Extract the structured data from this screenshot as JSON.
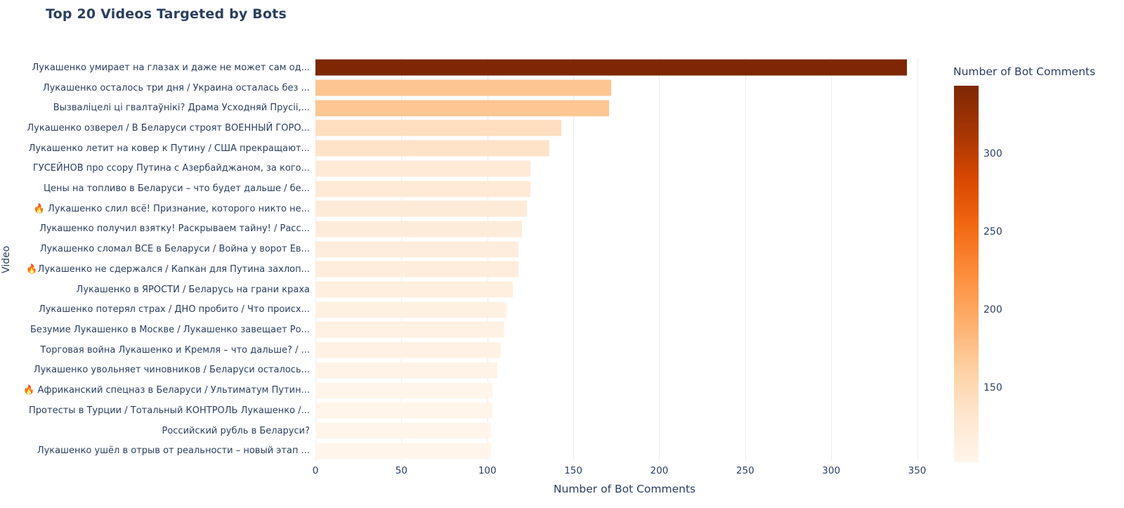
{
  "colors": {
    "text": "#2a3f5f",
    "gridline": "#e9edf6",
    "plot_background": "#ffffff",
    "bar_max": "#7f2704",
    "bar_min": "#fff5eb"
  },
  "chart_data": {
    "type": "bar",
    "orientation": "horizontal",
    "title": "Top 20 Videos Targeted by Bots",
    "xlabel": "Number of Bot Comments",
    "ylabel": "Video",
    "xlim": [
      0,
      360
    ],
    "x_ticks": [
      0,
      50,
      100,
      150,
      200,
      250,
      300,
      350
    ],
    "grid": true,
    "legend_position": "right",
    "categories": [
      "Лукашенко умирает на глазах и даже не может сам од...",
      "Лукашенко осталось три дня / Украина осталась без ...",
      "Вызваліцелі ці гвалтаўнікі? Драма Усходняй Прусіі,...",
      "Лукашенко озверел / В Беларуси строят ВОЕННЫЙ ГОРО...",
      "Лукашенко летит на ковер к Путину / США прекращают...",
      "ГУСЕЙНОВ про ссору Путина с Азербайджаном, за кого...",
      "Цены на топливо в Беларуси – что будет дальше / бе...",
      "🔥 Лукашенко слил всё! Признание, которого никто не...",
      "Лукашенко получил взятку! Раскрываем тайну! / Расс...",
      "Лукашенко сломал ВСЕ в Беларуси / Война у ворот Ев...",
      "🔥Лукашенко не сдержался / Капкан для Путина захлоп...",
      "Лукашенко в ЯРОСТИ / Беларусь на грани краха",
      "Лукашенко потерял страх / ДНО пробито / Что происх...",
      "Безумие Лукашенко в Москве / Лукашенко завещает Ро...",
      "Торговая война Лукашенко и Кремля – что дальше? / ...",
      "Лукашенко увольняет чиновников / Беларуси осталось...",
      "🔥 Африканский спецназ в Беларуси / Ультиматум Путин...",
      "Протесты в Турции / Тотальный КОНТРОЛЬ Лукашенко /...",
      "Российский рубль в Беларуси?",
      "Лукашенко ушёл в отрыв от реальности – новый этап ..."
    ],
    "values": [
      344,
      172,
      171,
      143,
      136,
      125,
      125,
      123,
      120,
      118,
      118,
      115,
      111,
      110,
      108,
      106,
      103,
      103,
      102,
      102
    ],
    "colorbar": {
      "title": "Number of Bot Comments",
      "cmin": 102,
      "cmax": 344,
      "ticks": [
        150,
        200,
        250,
        300
      ],
      "colorscale_name": "Oranges",
      "colorscale": [
        [
          0.0,
          [
            255,
            245,
            235
          ]
        ],
        [
          0.125,
          [
            254,
            230,
            206
          ]
        ],
        [
          0.25,
          [
            253,
            208,
            162
          ]
        ],
        [
          0.375,
          [
            253,
            174,
            107
          ]
        ],
        [
          0.5,
          [
            253,
            141,
            60
          ]
        ],
        [
          0.625,
          [
            241,
            105,
            19
          ]
        ],
        [
          0.75,
          [
            217,
            72,
            1
          ]
        ],
        [
          0.875,
          [
            166,
            54,
            3
          ]
        ],
        [
          1.0,
          [
            127,
            39,
            4
          ]
        ]
      ]
    }
  }
}
